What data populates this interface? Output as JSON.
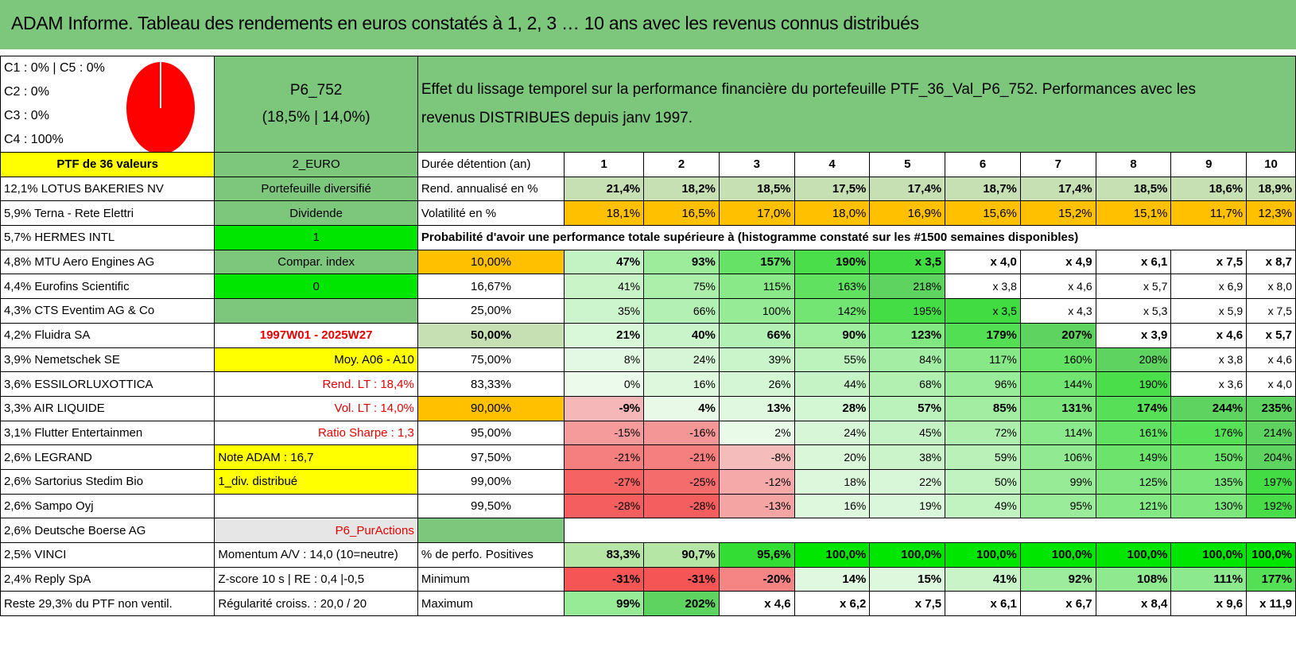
{
  "title": "ADAM Informe. Tableau des rendements en euros constatés à 1, 2, 3 … 10 ans avec les revenus connus distribués",
  "legend": [
    "C1 : 0% | C5 : 0%",
    "C2 : 0%",
    "C3 : 0%",
    "C4 : 100%"
  ],
  "pie_color": "#ff0000",
  "portfolio": {
    "code": "P6_752",
    "rates": "(18,5% | 14,0%)"
  },
  "description": "Effet du lissage temporel sur la performance financière du portefeuille PTF_36_Val_P6_752. Performances avec les revenus DISTRIBUES depuis janv 1997.",
  "header_row": {
    "ptf": "PTF de 36 valeurs",
    "currency": "2_EURO",
    "duration_label": "Durée détention (an)",
    "years": [
      "1",
      "2",
      "3",
      "4",
      "5",
      "6",
      "7",
      "8",
      "9",
      "10"
    ]
  },
  "holdings": [
    "12,1% LOTUS BAKERIES NV",
    "5,9% Terna - Rete Elettri",
    "5,7% HERMES INTL",
    "4,8% MTU Aero Engines AG",
    "4,4% Eurofins Scientific",
    "4,3% CTS Eventim AG & Co",
    "4,2% Fluidra SA",
    "3,9% Nemetschek SE",
    "3,6% ESSILORLUXOTTICA",
    "3,3% AIR LIQUIDE",
    "3,1% Flutter Entertainmen",
    "2,6% LEGRAND",
    "2,6% Sartorius Stedim Bio",
    "2,6% Sampo Oyj",
    "2,6% Deutsche Boerse AG",
    "2,5% VINCI",
    "2,4% Reply SpA",
    "Reste 29,3% du PTF non ventil."
  ],
  "info": {
    "diversified": "Portefeuille diversifié",
    "dividend": "Dividende",
    "one": "1",
    "compar": "Compar. index",
    "zero": "0",
    "period": "1997W01 - 2025W27",
    "moy": "Moy. A06 - A10",
    "rend_lt": "Rend. LT : 18,4%",
    "vol_lt": "Vol. LT : 14,0%",
    "sharpe": "Ratio Sharpe : 1,3",
    "note": "Note ADAM : 16,7",
    "div": "1_div. distribué",
    "pur": "P6_PurActions",
    "momentum": "Momentum A/V : 14,0 (10=neutre)",
    "zscore": "Z-score 10 s | RE : 0,4 |-0,5",
    "regularite": "Régularité croiss. : 20,0 / 20"
  },
  "rend": {
    "label": "Rend. annualisé en %",
    "values": [
      "21,4%",
      "18,2%",
      "18,5%",
      "17,5%",
      "17,4%",
      "18,7%",
      "17,4%",
      "18,5%",
      "18,6%",
      "18,9%"
    ]
  },
  "vol": {
    "label": "Volatilité en %",
    "values": [
      "18,1%",
      "16,5%",
      "17,0%",
      "18,0%",
      "16,9%",
      "15,6%",
      "15,2%",
      "15,1%",
      "11,7%",
      "12,3%"
    ]
  },
  "proba_title": "Probabilité d'avoir une performance totale supérieure à (histogramme constaté sur les #1500 semaines disponibles)",
  "proba": [
    {
      "level": "10,00%",
      "values": [
        "47%",
        "93%",
        "157%",
        "190%",
        "x 3,5",
        "x 4,0",
        "x 4,9",
        "x 6,1",
        "x 7,5",
        "x 8,7"
      ]
    },
    {
      "level": "16,67%",
      "values": [
        "41%",
        "75%",
        "115%",
        "163%",
        "218%",
        "x 3,8",
        "x 4,6",
        "x 5,7",
        "x 6,9",
        "x 8,0"
      ]
    },
    {
      "level": "25,00%",
      "values": [
        "35%",
        "66%",
        "100%",
        "142%",
        "195%",
        "x 3,5",
        "x 4,3",
        "x 5,3",
        "x 5,9",
        "x 7,5"
      ]
    },
    {
      "level": "50,00%",
      "values": [
        "21%",
        "40%",
        "66%",
        "90%",
        "123%",
        "179%",
        "207%",
        "x 3,9",
        "x 4,6",
        "x 5,7"
      ]
    },
    {
      "level": "75,00%",
      "values": [
        "8%",
        "24%",
        "39%",
        "55%",
        "84%",
        "117%",
        "160%",
        "208%",
        "x 3,8",
        "x 4,6"
      ]
    },
    {
      "level": "83,33%",
      "values": [
        "0%",
        "16%",
        "26%",
        "44%",
        "68%",
        "96%",
        "144%",
        "190%",
        "x 3,6",
        "x 4,0"
      ]
    },
    {
      "level": "90,00%",
      "values": [
        "-9%",
        "4%",
        "13%",
        "28%",
        "57%",
        "85%",
        "131%",
        "174%",
        "244%",
        "235%"
      ]
    },
    {
      "level": "95,00%",
      "values": [
        "-15%",
        "-16%",
        "2%",
        "24%",
        "45%",
        "72%",
        "114%",
        "161%",
        "176%",
        "214%"
      ]
    },
    {
      "level": "97,50%",
      "values": [
        "-21%",
        "-21%",
        "-8%",
        "20%",
        "38%",
        "59%",
        "106%",
        "149%",
        "150%",
        "204%"
      ]
    },
    {
      "level": "99,00%",
      "values": [
        "-27%",
        "-25%",
        "-12%",
        "18%",
        "22%",
        "50%",
        "99%",
        "125%",
        "135%",
        "197%"
      ]
    },
    {
      "level": "99,50%",
      "values": [
        "-28%",
        "-28%",
        "-13%",
        "16%",
        "19%",
        "49%",
        "95%",
        "121%",
        "130%",
        "192%"
      ]
    }
  ],
  "positives": {
    "label": "% de perfo. Positives",
    "values": [
      "83,3%",
      "90,7%",
      "95,6%",
      "100,0%",
      "100,0%",
      "100,0%",
      "100,0%",
      "100,0%",
      "100,0%",
      "100,0%"
    ]
  },
  "minimum": {
    "label": "Minimum",
    "values": [
      "-31%",
      "-31%",
      "-20%",
      "14%",
      "15%",
      "41%",
      "92%",
      "108%",
      "111%",
      "177%"
    ]
  },
  "maximum": {
    "label": "Maximum",
    "values": [
      "99%",
      "202%",
      "x 4,6",
      "x 6,2",
      "x 7,5",
      "x 6,1",
      "x 6,7",
      "x 8,4",
      "x 9,6",
      "x 11,9"
    ]
  }
}
